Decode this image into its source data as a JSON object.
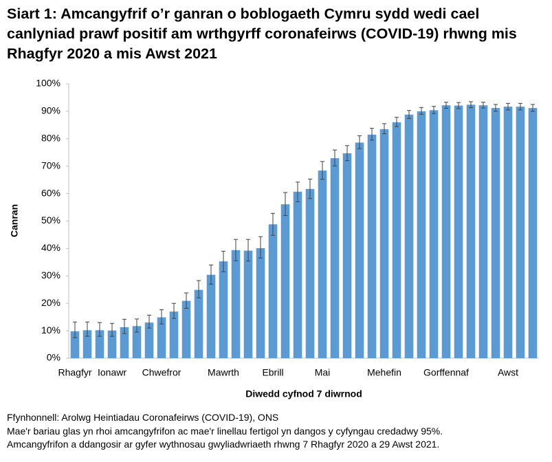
{
  "chart_data": {
    "type": "bar",
    "title": "Siart 1: Amcangyfrif o’r ganran o boblogaeth Cymru sydd wedi cael canlyniad prawf positif am wrthgyrff coronafeirws (COVID-19) rhwng mis Rhagfyr 2020 a mis Awst 2021",
    "y_label": "Canran",
    "x_label": "Diwedd cyfnod 7 diwrnod",
    "notes": [
      "Ffynhonnell: Arolwg Heintiadau Coronafeirws (COVID-19), ONS",
      "Mae'r bariau glas yn rhoi amcangyfrifon ac mae'r linellau fertigol yn dangos y cyfyngau credadwy 95%.",
      "Amcangyfrifon a ddangosir ar gyfer wythnosau gwyliadwriaeth rhwng 7 Rhagfyr 2020 a 29 Awst 2021."
    ],
    "categories": [
      "Rhagfyr",
      null,
      null,
      "Ionawr",
      null,
      null,
      null,
      "Chwefror",
      null,
      null,
      null,
      null,
      "Mawrth",
      null,
      null,
      null,
      "Ebrill",
      null,
      null,
      null,
      "Mai",
      null,
      null,
      null,
      null,
      "Mehefin",
      null,
      null,
      null,
      null,
      "Gorffennaf",
      null,
      null,
      null,
      null,
      "Awst",
      null,
      null
    ],
    "values": [
      9.8,
      10.2,
      10.2,
      10.1,
      11.3,
      11.7,
      13.0,
      14.9,
      17.0,
      20.9,
      24.9,
      30.4,
      35.3,
      39.4,
      39.2,
      40.1,
      48.8,
      56.1,
      60.7,
      61.7,
      68.4,
      72.9,
      74.7,
      78.6,
      81.5,
      83.5,
      86.0,
      88.8,
      90.0,
      90.4,
      92.2,
      92.1,
      92.4,
      92.2,
      91.2,
      91.7,
      91.7,
      91.2
    ],
    "error_low": [
      7.5,
      8,
      8,
      8,
      9,
      9.5,
      11,
      12.5,
      14.5,
      18.2,
      22,
      27,
      31.5,
      35.5,
      35.4,
      36.5,
      44.8,
      52,
      57,
      58.2,
      65.2,
      70.1,
      72,
      76.4,
      79.5,
      81.8,
      84.4,
      87.4,
      88.9,
      89.2,
      91.1,
      91.0,
      91.3,
      91.2,
      90.0,
      90.5,
      90.5,
      90.0
    ],
    "error_high": [
      13.2,
      13.2,
      13,
      12.7,
      14.2,
      14.3,
      15.7,
      17.7,
      20,
      23.8,
      28.3,
      34,
      39,
      43.3,
      43.3,
      44.3,
      52.8,
      60.4,
      64.2,
      65.3,
      71.7,
      75.9,
      77.5,
      81.1,
      83.8,
      85.5,
      87.8,
      90.3,
      91.4,
      91.8,
      93.3,
      93.2,
      93.5,
      93.3,
      92.5,
      92.9,
      92.9,
      92.5
    ],
    "color": "#5b9bd5",
    "error_color": "#404040",
    "ylim": [
      0,
      100
    ],
    "yticks": [
      {
        "value": 0,
        "label": "0%"
      },
      {
        "value": 10,
        "label": "10%"
      },
      {
        "value": 20,
        "label": "20%"
      },
      {
        "value": 30,
        "label": "30%"
      },
      {
        "value": 40,
        "label": "40%"
      },
      {
        "value": 50,
        "label": "50%"
      },
      {
        "value": 60,
        "label": "60%"
      },
      {
        "value": 70,
        "label": "70%"
      },
      {
        "value": 80,
        "label": "80%"
      },
      {
        "value": 90,
        "label": "90%"
      },
      {
        "value": 100,
        "label": "100%"
      }
    ],
    "grid": false
  }
}
